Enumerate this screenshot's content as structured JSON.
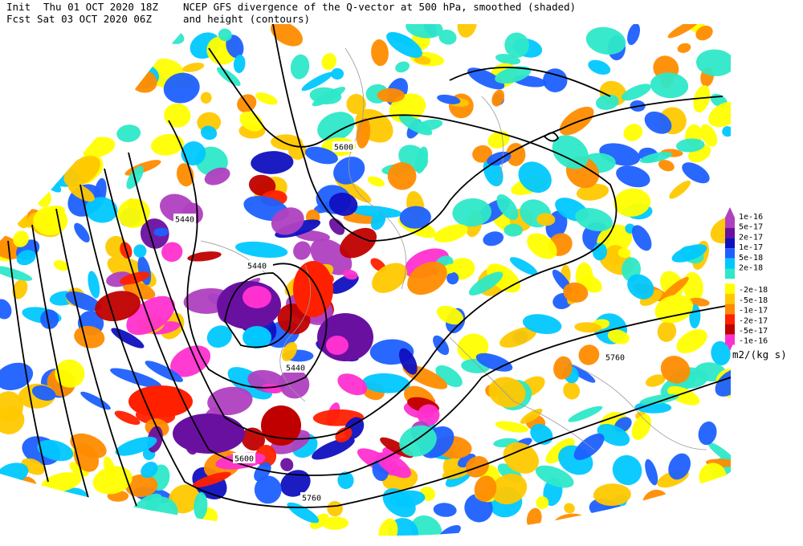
{
  "header": {
    "init_label": "Init",
    "init_time": "Thu 01 OCT 2020 18Z",
    "fcst_label": "Fcst",
    "fcst_time": "Sat 03 OCT 2020 06Z",
    "title": "NCEP GFS divergence of the Q-vector at 500 hPa, smoothed (shaded)",
    "subtitle": "and height (contours)"
  },
  "contour_labels": [
    "5600",
    "5440",
    "5440",
    "5440",
    "5600",
    "5760",
    "5760"
  ],
  "colorbar": {
    "labels": [
      "1e-16",
      "5e-17",
      "2e-17",
      "1e-17",
      "5e-18",
      "2e-18",
      "-2e-18",
      "-5e-18",
      "-1e-17",
      "-2e-17",
      "-5e-17",
      "-1e-16"
    ],
    "unit": "m2/(kg s)"
  }
}
